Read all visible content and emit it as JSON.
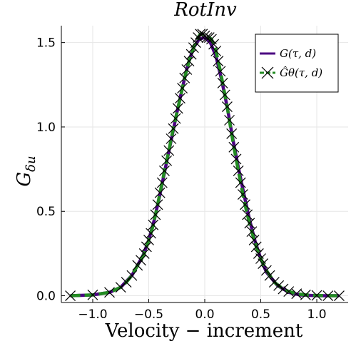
{
  "chart_data": {
    "type": "line",
    "title": "RotInv",
    "xlabel": "Velocity − increment",
    "ylabel": "G_δu",
    "xlim": [
      -1.28,
      1.28
    ],
    "ylim": [
      -0.04,
      1.6
    ],
    "xticks": [
      -1.0,
      -0.5,
      0.0,
      0.5,
      1.0
    ],
    "xtick_labels": [
      "−1.0",
      "−0.5",
      "0.0",
      "0.5",
      "1.0"
    ],
    "yticks": [
      0.0,
      0.5,
      1.0,
      1.5
    ],
    "ytick_labels": [
      "0.0",
      "0.5",
      "1.0",
      "1.5"
    ],
    "grid": true,
    "legend_position": "top-right",
    "series": [
      {
        "name": "G(τ, d)",
        "color": "#4b0082",
        "style": "solid",
        "x": [
          -1.2,
          -1.0,
          -0.85,
          -0.75,
          -0.65,
          -0.55,
          -0.5,
          -0.45,
          -0.4,
          -0.35,
          -0.3,
          -0.25,
          -0.2,
          -0.15,
          -0.1,
          -0.05,
          0.0,
          0.05,
          0.1,
          0.15,
          0.2,
          0.25,
          0.3,
          0.35,
          0.4,
          0.45,
          0.5,
          0.55,
          0.65,
          0.75,
          0.85,
          1.0,
          1.2
        ],
        "y": [
          0.0,
          0.005,
          0.02,
          0.05,
          0.12,
          0.24,
          0.33,
          0.45,
          0.6,
          0.76,
          0.92,
          1.08,
          1.23,
          1.37,
          1.47,
          1.52,
          1.53,
          1.5,
          1.42,
          1.28,
          1.12,
          0.93,
          0.76,
          0.6,
          0.45,
          0.32,
          0.22,
          0.14,
          0.06,
          0.02,
          0.005,
          0.0,
          0.0
        ]
      },
      {
        "name": "Ĝθ(τ, d)",
        "color": "#228b22",
        "marker": "x",
        "style": "dashed",
        "x": [
          -1.2,
          -1.0,
          -0.85,
          -0.75,
          -0.7,
          -0.65,
          -0.6,
          -0.57,
          -0.54,
          -0.52,
          -0.5,
          -0.48,
          -0.46,
          -0.44,
          -0.42,
          -0.4,
          -0.38,
          -0.36,
          -0.34,
          -0.32,
          -0.3,
          -0.28,
          -0.26,
          -0.24,
          -0.22,
          -0.2,
          -0.18,
          -0.16,
          -0.14,
          -0.12,
          -0.1,
          -0.08,
          -0.06,
          -0.04,
          -0.02,
          0.0,
          0.02,
          0.04,
          0.06,
          0.08,
          0.1,
          0.12,
          0.14,
          0.16,
          0.18,
          0.2,
          0.22,
          0.24,
          0.26,
          0.28,
          0.3,
          0.32,
          0.34,
          0.36,
          0.38,
          0.4,
          0.42,
          0.44,
          0.46,
          0.48,
          0.5,
          0.52,
          0.55,
          0.58,
          0.62,
          0.66,
          0.7,
          0.75,
          0.82,
          0.9,
          1.0,
          1.1,
          1.2
        ],
        "y": [
          0.0,
          0.005,
          0.02,
          0.05,
          0.08,
          0.12,
          0.18,
          0.21,
          0.25,
          0.29,
          0.33,
          0.37,
          0.42,
          0.48,
          0.54,
          0.61,
          0.67,
          0.74,
          0.8,
          0.86,
          0.93,
          0.99,
          1.05,
          1.11,
          1.17,
          1.23,
          1.29,
          1.34,
          1.39,
          1.43,
          1.47,
          1.5,
          1.53,
          1.55,
          1.55,
          1.54,
          1.53,
          1.53,
          1.52,
          1.49,
          1.45,
          1.39,
          1.33,
          1.26,
          1.19,
          1.12,
          1.04,
          0.96,
          0.88,
          0.81,
          0.74,
          0.67,
          0.6,
          0.54,
          0.48,
          0.43,
          0.38,
          0.33,
          0.29,
          0.25,
          0.22,
          0.19,
          0.15,
          0.12,
          0.08,
          0.06,
          0.04,
          0.025,
          0.012,
          0.005,
          0.002,
          0.0,
          0.0
        ]
      }
    ]
  }
}
